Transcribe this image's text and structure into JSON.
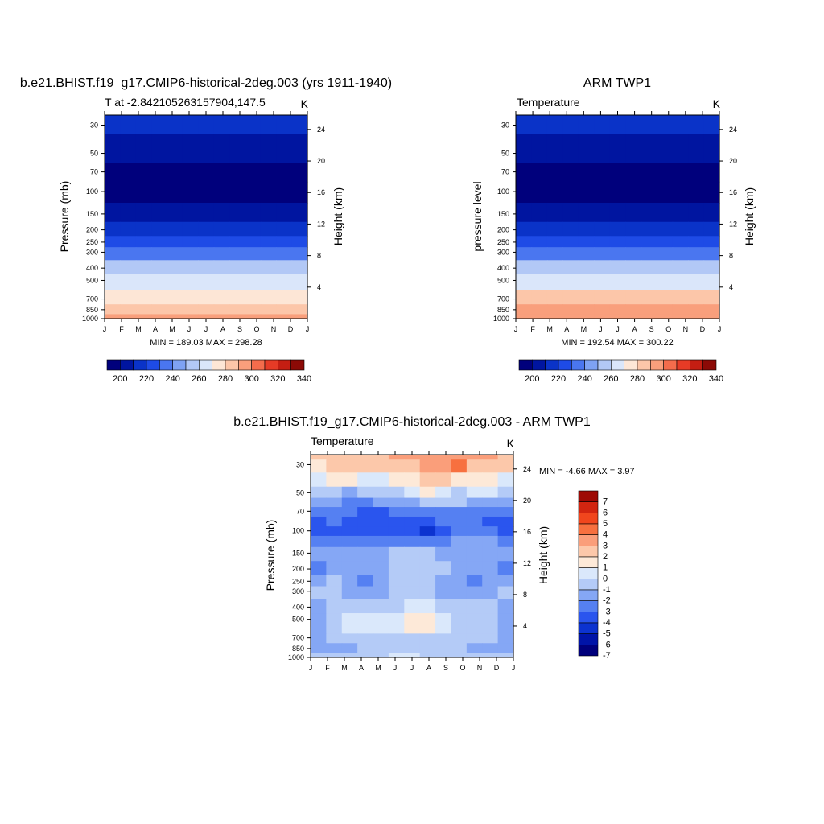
{
  "figure": {
    "panels": [
      {
        "id": "model",
        "title": "b.e21.BHIST.f19_g17.CMIP6-historical-2deg.003 (yrs 1911-1940)",
        "left_label": "T at -2.842105263157904,147.5",
        "units": "K",
        "ylabel": "Pressure (mb)",
        "ylabel_right": "Height (km)",
        "minmax": "MIN = 189.03 MAX = 298.28",
        "colorbar_labels": [
          "200",
          "220",
          "240",
          "260",
          "280",
          "300",
          "320",
          "340"
        ]
      },
      {
        "id": "obs",
        "title": "ARM TWP1",
        "left_label": "Temperature",
        "units": "K",
        "ylabel": "pressure level",
        "ylabel_right": "Height (km)",
        "minmax": "MIN = 192.54 MAX = 300.22",
        "colorbar_labels": [
          "200",
          "220",
          "240",
          "260",
          "280",
          "300",
          "320",
          "340"
        ]
      },
      {
        "id": "diff",
        "title": "b.e21.BHIST.f19_g17.CMIP6-historical-2deg.003 - ARM TWP1",
        "left_label": "Temperature",
        "units": "K",
        "ylabel": "Pressure (mb)",
        "ylabel_right": "Height (km)",
        "minmax": "MIN =  -4.66 MAX =   3.97",
        "colorbar_labels": [
          "7",
          "6",
          "5",
          "4",
          "3",
          "2",
          "1",
          "0",
          "-1",
          "-2",
          "-3",
          "-4",
          "-5",
          "-6",
          "-7"
        ]
      }
    ],
    "colors": {
      "abs_levels": [
        "#00007c",
        "#0015a0",
        "#0a33c8",
        "#1e4be6",
        "#4a76f0",
        "#7ea2f4",
        "#b2c8f6",
        "#dae6fa",
        "#fde6d6",
        "#fcc6a9",
        "#f99f7c",
        "#f46c4c",
        "#e63b26",
        "#c41e12",
        "#8c0a06"
      ],
      "diff_levels": [
        "#00007c",
        "#0014a8",
        "#0c33d0",
        "#2a55ee",
        "#5580f2",
        "#85a7f5",
        "#b4cbf7",
        "#dae8fb",
        "#fde9d8",
        "#fcc8aa",
        "#fa9e7a",
        "#f7703f",
        "#f1461d",
        "#d22510",
        "#9e0a05"
      ]
    }
  },
  "chart_data": [
    {
      "type": "heatmap",
      "title": "b.e21.BHIST.f19_g17.CMIP6-historical-2deg.003 (yrs 1911-1940)",
      "xlabel": "",
      "ylabel": "Pressure (mb)",
      "ylabel_right": "Height (km)",
      "x_ticks": [
        "J",
        "F",
        "M",
        "A",
        "M",
        "J",
        "J",
        "A",
        "S",
        "O",
        "N",
        "D",
        "J"
      ],
      "y_ticks": [
        30,
        50,
        70,
        100,
        150,
        200,
        250,
        300,
        400,
        500,
        700,
        850,
        1000
      ],
      "y_right_ticks": [
        4,
        8,
        12,
        16,
        20,
        24
      ],
      "y_scale": "log",
      "ylim": [
        1000,
        25
      ],
      "levels": [
        190,
        200,
        210,
        220,
        230,
        240,
        250,
        260,
        270,
        280,
        290,
        300,
        310,
        320,
        330,
        340
      ],
      "y_levels": [
        25,
        50,
        70,
        100,
        150,
        200,
        250,
        300,
        400,
        500,
        700,
        850,
        1000
      ],
      "values": [
        [
          212,
          212,
          212,
          212,
          212,
          212,
          212,
          212,
          212,
          212,
          212,
          212,
          212
        ],
        [
          205,
          205,
          205,
          205,
          204,
          203,
          202,
          202,
          203,
          204,
          205,
          205,
          205
        ],
        [
          197,
          197,
          196,
          196,
          195,
          194,
          193,
          193,
          194,
          195,
          196,
          197,
          197
        ],
        [
          191,
          191,
          191,
          191,
          191,
          190,
          190,
          190,
          190,
          190,
          191,
          191,
          191
        ],
        [
          204,
          204,
          204,
          204,
          204,
          204,
          204,
          204,
          204,
          204,
          204,
          204,
          204
        ],
        [
          216,
          216,
          216,
          216,
          216,
          216,
          216,
          216,
          216,
          216,
          216,
          216,
          216
        ],
        [
          226,
          226,
          226,
          226,
          226,
          226,
          226,
          226,
          226,
          226,
          226,
          226,
          226
        ],
        [
          235,
          235,
          235,
          235,
          235,
          235,
          235,
          235,
          235,
          235,
          235,
          235,
          235
        ],
        [
          251,
          251,
          251,
          251,
          251,
          251,
          251,
          251,
          251,
          251,
          251,
          251,
          251
        ],
        [
          263,
          263,
          263,
          263,
          263,
          263,
          263,
          263,
          263,
          263,
          263,
          263,
          263
        ],
        [
          279,
          279,
          279,
          279,
          279,
          279,
          279,
          279,
          279,
          279,
          279,
          279,
          279
        ],
        [
          288,
          288,
          288,
          288,
          288,
          288,
          288,
          288,
          288,
          288,
          288,
          288,
          288
        ],
        [
          296,
          296,
          296,
          296,
          296,
          296,
          296,
          296,
          296,
          296,
          296,
          296,
          296
        ]
      ],
      "min": 189.03,
      "max": 298.28,
      "colorbar": {
        "orientation": "horizontal",
        "labels": [
          200,
          220,
          240,
          260,
          280,
          300,
          320,
          340
        ]
      }
    },
    {
      "type": "heatmap",
      "title": "ARM TWP1",
      "xlabel": "",
      "ylabel": "pressure level",
      "ylabel_right": "Height (km)",
      "x_ticks": [
        "J",
        "F",
        "M",
        "A",
        "M",
        "J",
        "J",
        "A",
        "S",
        "O",
        "N",
        "D",
        "J"
      ],
      "y_ticks": [
        30,
        50,
        70,
        100,
        150,
        200,
        250,
        300,
        400,
        500,
        700,
        850,
        1000
      ],
      "y_right_ticks": [
        4,
        8,
        12,
        16,
        20,
        24
      ],
      "y_scale": "log",
      "ylim": [
        1000,
        25
      ],
      "levels": [
        190,
        200,
        210,
        220,
        230,
        240,
        250,
        260,
        270,
        280,
        290,
        300,
        310,
        320,
        330,
        340
      ],
      "y_levels": [
        25,
        50,
        70,
        100,
        150,
        200,
        250,
        300,
        400,
        500,
        700,
        850,
        1000
      ],
      "values": [
        [
          212,
          212,
          212,
          212,
          212,
          212,
          212,
          212,
          212,
          212,
          212,
          212,
          212
        ],
        [
          206,
          206,
          205,
          204,
          203,
          202,
          201,
          201,
          202,
          204,
          205,
          206,
          206
        ],
        [
          199,
          198,
          197,
          197,
          196,
          195,
          194,
          194,
          195,
          196,
          197,
          198,
          199
        ],
        [
          193,
          193,
          193,
          193,
          193,
          193,
          193,
          193,
          193,
          193,
          193,
          193,
          193
        ],
        [
          204,
          204,
          204,
          204,
          204,
          204,
          204,
          204,
          204,
          204,
          204,
          204,
          204
        ],
        [
          216,
          216,
          216,
          216,
          216,
          216,
          216,
          216,
          216,
          216,
          216,
          216,
          216
        ],
        [
          226,
          226,
          226,
          226,
          226,
          226,
          226,
          226,
          226,
          226,
          226,
          226,
          226
        ],
        [
          235,
          235,
          235,
          235,
          235,
          235,
          235,
          235,
          235,
          235,
          235,
          235,
          235
        ],
        [
          252,
          252,
          252,
          252,
          252,
          252,
          252,
          252,
          252,
          252,
          252,
          252,
          252
        ],
        [
          264,
          264,
          264,
          264,
          264,
          264,
          264,
          264,
          264,
          264,
          264,
          264,
          264
        ],
        [
          281,
          281,
          281,
          281,
          281,
          281,
          281,
          281,
          281,
          281,
          281,
          281,
          281
        ],
        [
          290,
          290,
          290,
          290,
          290,
          290,
          290,
          290,
          290,
          290,
          290,
          290,
          290
        ],
        [
          298,
          298,
          298,
          298,
          298,
          298,
          298,
          298,
          298,
          298,
          298,
          298,
          298
        ]
      ],
      "min": 192.54,
      "max": 300.22,
      "colorbar": {
        "orientation": "horizontal",
        "labels": [
          200,
          220,
          240,
          260,
          280,
          300,
          320,
          340
        ]
      }
    },
    {
      "type": "heatmap",
      "title": "b.e21.BHIST.f19_g17.CMIP6-historical-2deg.003 - ARM TWP1",
      "xlabel": "",
      "ylabel": "Pressure (mb)",
      "ylabel_right": "Height (km)",
      "x_ticks": [
        "J",
        "F",
        "M",
        "A",
        "M",
        "J",
        "J",
        "A",
        "S",
        "O",
        "N",
        "D",
        "J"
      ],
      "y_ticks": [
        30,
        50,
        70,
        100,
        150,
        200,
        250,
        300,
        400,
        500,
        700,
        850,
        1000
      ],
      "y_right_ticks": [
        4,
        8,
        12,
        16,
        20,
        24
      ],
      "y_scale": "log",
      "ylim": [
        1000,
        25
      ],
      "levels": [
        -7,
        -6,
        -5,
        -4,
        -3,
        -2,
        -1,
        0,
        1,
        2,
        3,
        4,
        5,
        6,
        7
      ],
      "y_levels": [
        25,
        30,
        40,
        50,
        60,
        70,
        85,
        100,
        120,
        150,
        200,
        250,
        300,
        400,
        500,
        600,
        700,
        850,
        1000
      ],
      "values": [
        [
          2.5,
          2.5,
          2.5,
          2.5,
          2.5,
          3.0,
          3.0,
          3.0,
          3.0,
          3.5,
          3.0,
          3.0,
          2.5
        ],
        [
          1.5,
          2.5,
          2.5,
          2.0,
          2.0,
          2.0,
          2.5,
          3.0,
          3.5,
          4.0,
          2.5,
          2.5,
          2.5
        ],
        [
          0.5,
          1.5,
          1.5,
          0.5,
          0.5,
          1.0,
          1.5,
          2.0,
          2.5,
          1.5,
          1.5,
          1.5,
          0.5
        ],
        [
          -1.0,
          -0.5,
          -1.5,
          -1.0,
          -1.0,
          -0.5,
          0.5,
          1.5,
          0.5,
          -0.5,
          0.5,
          0.5,
          -1.0
        ],
        [
          -2.0,
          -2.0,
          -2.5,
          -2.5,
          -2.0,
          -2.0,
          -1.5,
          -0.5,
          -1.0,
          -1.0,
          -1.5,
          -1.5,
          -2.0
        ],
        [
          -2.5,
          -2.5,
          -3.0,
          -3.5,
          -3.5,
          -3.0,
          -2.5,
          -2.5,
          -2.5,
          -2.5,
          -2.5,
          -2.5,
          -2.5
        ],
        [
          -3.5,
          -3.0,
          -3.5,
          -4.0,
          -4.0,
          -3.5,
          -3.5,
          -3.5,
          -3.0,
          -3.0,
          -3.0,
          -3.5,
          -3.5
        ],
        [
          -4.0,
          -3.5,
          -3.5,
          -3.5,
          -3.5,
          -3.5,
          -3.5,
          -4.6,
          -3.5,
          -3.0,
          -3.0,
          -3.0,
          -4.0
        ],
        [
          -2.5,
          -2.5,
          -2.5,
          -2.5,
          -2.5,
          -2.5,
          -2.5,
          -2.5,
          -2.5,
          -2.0,
          -2.0,
          -2.0,
          -2.5
        ],
        [
          -1.5,
          -1.5,
          -1.5,
          -1.5,
          -1.5,
          -0.5,
          -1.0,
          -0.5,
          -1.5,
          -1.5,
          -1.5,
          -1.5,
          -1.5
        ],
        [
          -2.5,
          -1.5,
          -1.5,
          -2.0,
          -1.5,
          -1.0,
          -0.5,
          -0.5,
          -1.0,
          -1.5,
          -2.0,
          -2.0,
          -2.5
        ],
        [
          -1.5,
          -1.0,
          -1.5,
          -2.5,
          -1.5,
          -1.0,
          -0.5,
          -1.0,
          -1.5,
          -1.5,
          -2.5,
          -2.0,
          -1.5
        ],
        [
          -1.0,
          -1.0,
          -1.5,
          -1.5,
          -1.5,
          -1.0,
          -0.5,
          -0.5,
          -1.5,
          -1.5,
          -1.5,
          -1.5,
          -1.0
        ],
        [
          -1.5,
          -1.0,
          -1.0,
          -1.0,
          -0.5,
          -0.5,
          0.5,
          0.5,
          -0.5,
          -1.0,
          -1.0,
          -1.0,
          -1.5
        ],
        [
          -1.5,
          -0.5,
          0.5,
          0.5,
          0.5,
          0.5,
          1.5,
          1.5,
          0.5,
          -0.5,
          -0.5,
          -0.5,
          -1.5
        ],
        [
          -1.5,
          -0.5,
          0.5,
          0.5,
          0.5,
          0.5,
          1.0,
          1.0,
          0.5,
          -0.5,
          -0.5,
          -0.5,
          -1.5
        ],
        [
          -1.5,
          -1.0,
          -0.5,
          -0.5,
          -0.5,
          -0.5,
          -0.5,
          -0.5,
          -0.5,
          -0.5,
          -1.0,
          -1.0,
          -1.5
        ],
        [
          -1.5,
          -1.5,
          -1.5,
          -1.0,
          -1.0,
          -1.0,
          -1.0,
          -1.0,
          -1.0,
          -1.0,
          -1.5,
          -1.5,
          -1.5
        ],
        [
          -1.0,
          -1.0,
          -1.0,
          -0.5,
          -0.5,
          0.5,
          0.5,
          -0.5,
          -1.0,
          -1.0,
          -1.0,
          -1.0,
          -1.0
        ]
      ],
      "min": -4.66,
      "max": 3.97,
      "colorbar": {
        "orientation": "vertical",
        "labels": [
          7,
          6,
          5,
          4,
          3,
          2,
          1,
          0,
          -1,
          -2,
          -3,
          -4,
          -5,
          -6,
          -7
        ]
      }
    }
  ]
}
